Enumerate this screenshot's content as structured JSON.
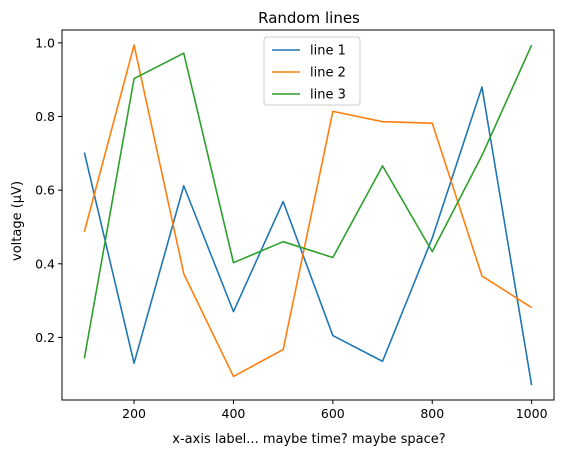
{
  "chart_data": {
    "type": "line",
    "title": "Random lines",
    "xlabel": "x-axis label... maybe time? maybe space?",
    "ylabel": "voltage (μV)",
    "x": [
      100,
      200,
      300,
      400,
      500,
      600,
      700,
      800,
      900,
      1000
    ],
    "xlim": [
      55,
      1045
    ],
    "ylim": [
      0.03,
      1.035
    ],
    "xticks": [
      200,
      400,
      600,
      800,
      1000
    ],
    "yticks": [
      0.2,
      0.4,
      0.6,
      0.8,
      1.0
    ],
    "xtick_labels": [
      "200",
      "400",
      "600",
      "800",
      "1000"
    ],
    "ytick_labels": [
      "0.2",
      "0.4",
      "0.6",
      "0.8",
      "1.0"
    ],
    "grid": false,
    "legend_position": "top-center",
    "series": [
      {
        "name": "line 1",
        "color": "#1f77b4",
        "values": [
          0.702,
          0.13,
          0.612,
          0.27,
          0.569,
          0.205,
          0.135,
          0.47,
          0.88,
          0.07
        ]
      },
      {
        "name": "line 2",
        "color": "#ff7f0e",
        "values": [
          0.487,
          0.994,
          0.373,
          0.094,
          0.167,
          0.814,
          0.786,
          0.782,
          0.367,
          0.281
        ]
      },
      {
        "name": "line 3",
        "color": "#2ca02c",
        "values": [
          0.143,
          0.903,
          0.972,
          0.403,
          0.46,
          0.417,
          0.666,
          0.433,
          0.694,
          0.994
        ]
      }
    ]
  }
}
